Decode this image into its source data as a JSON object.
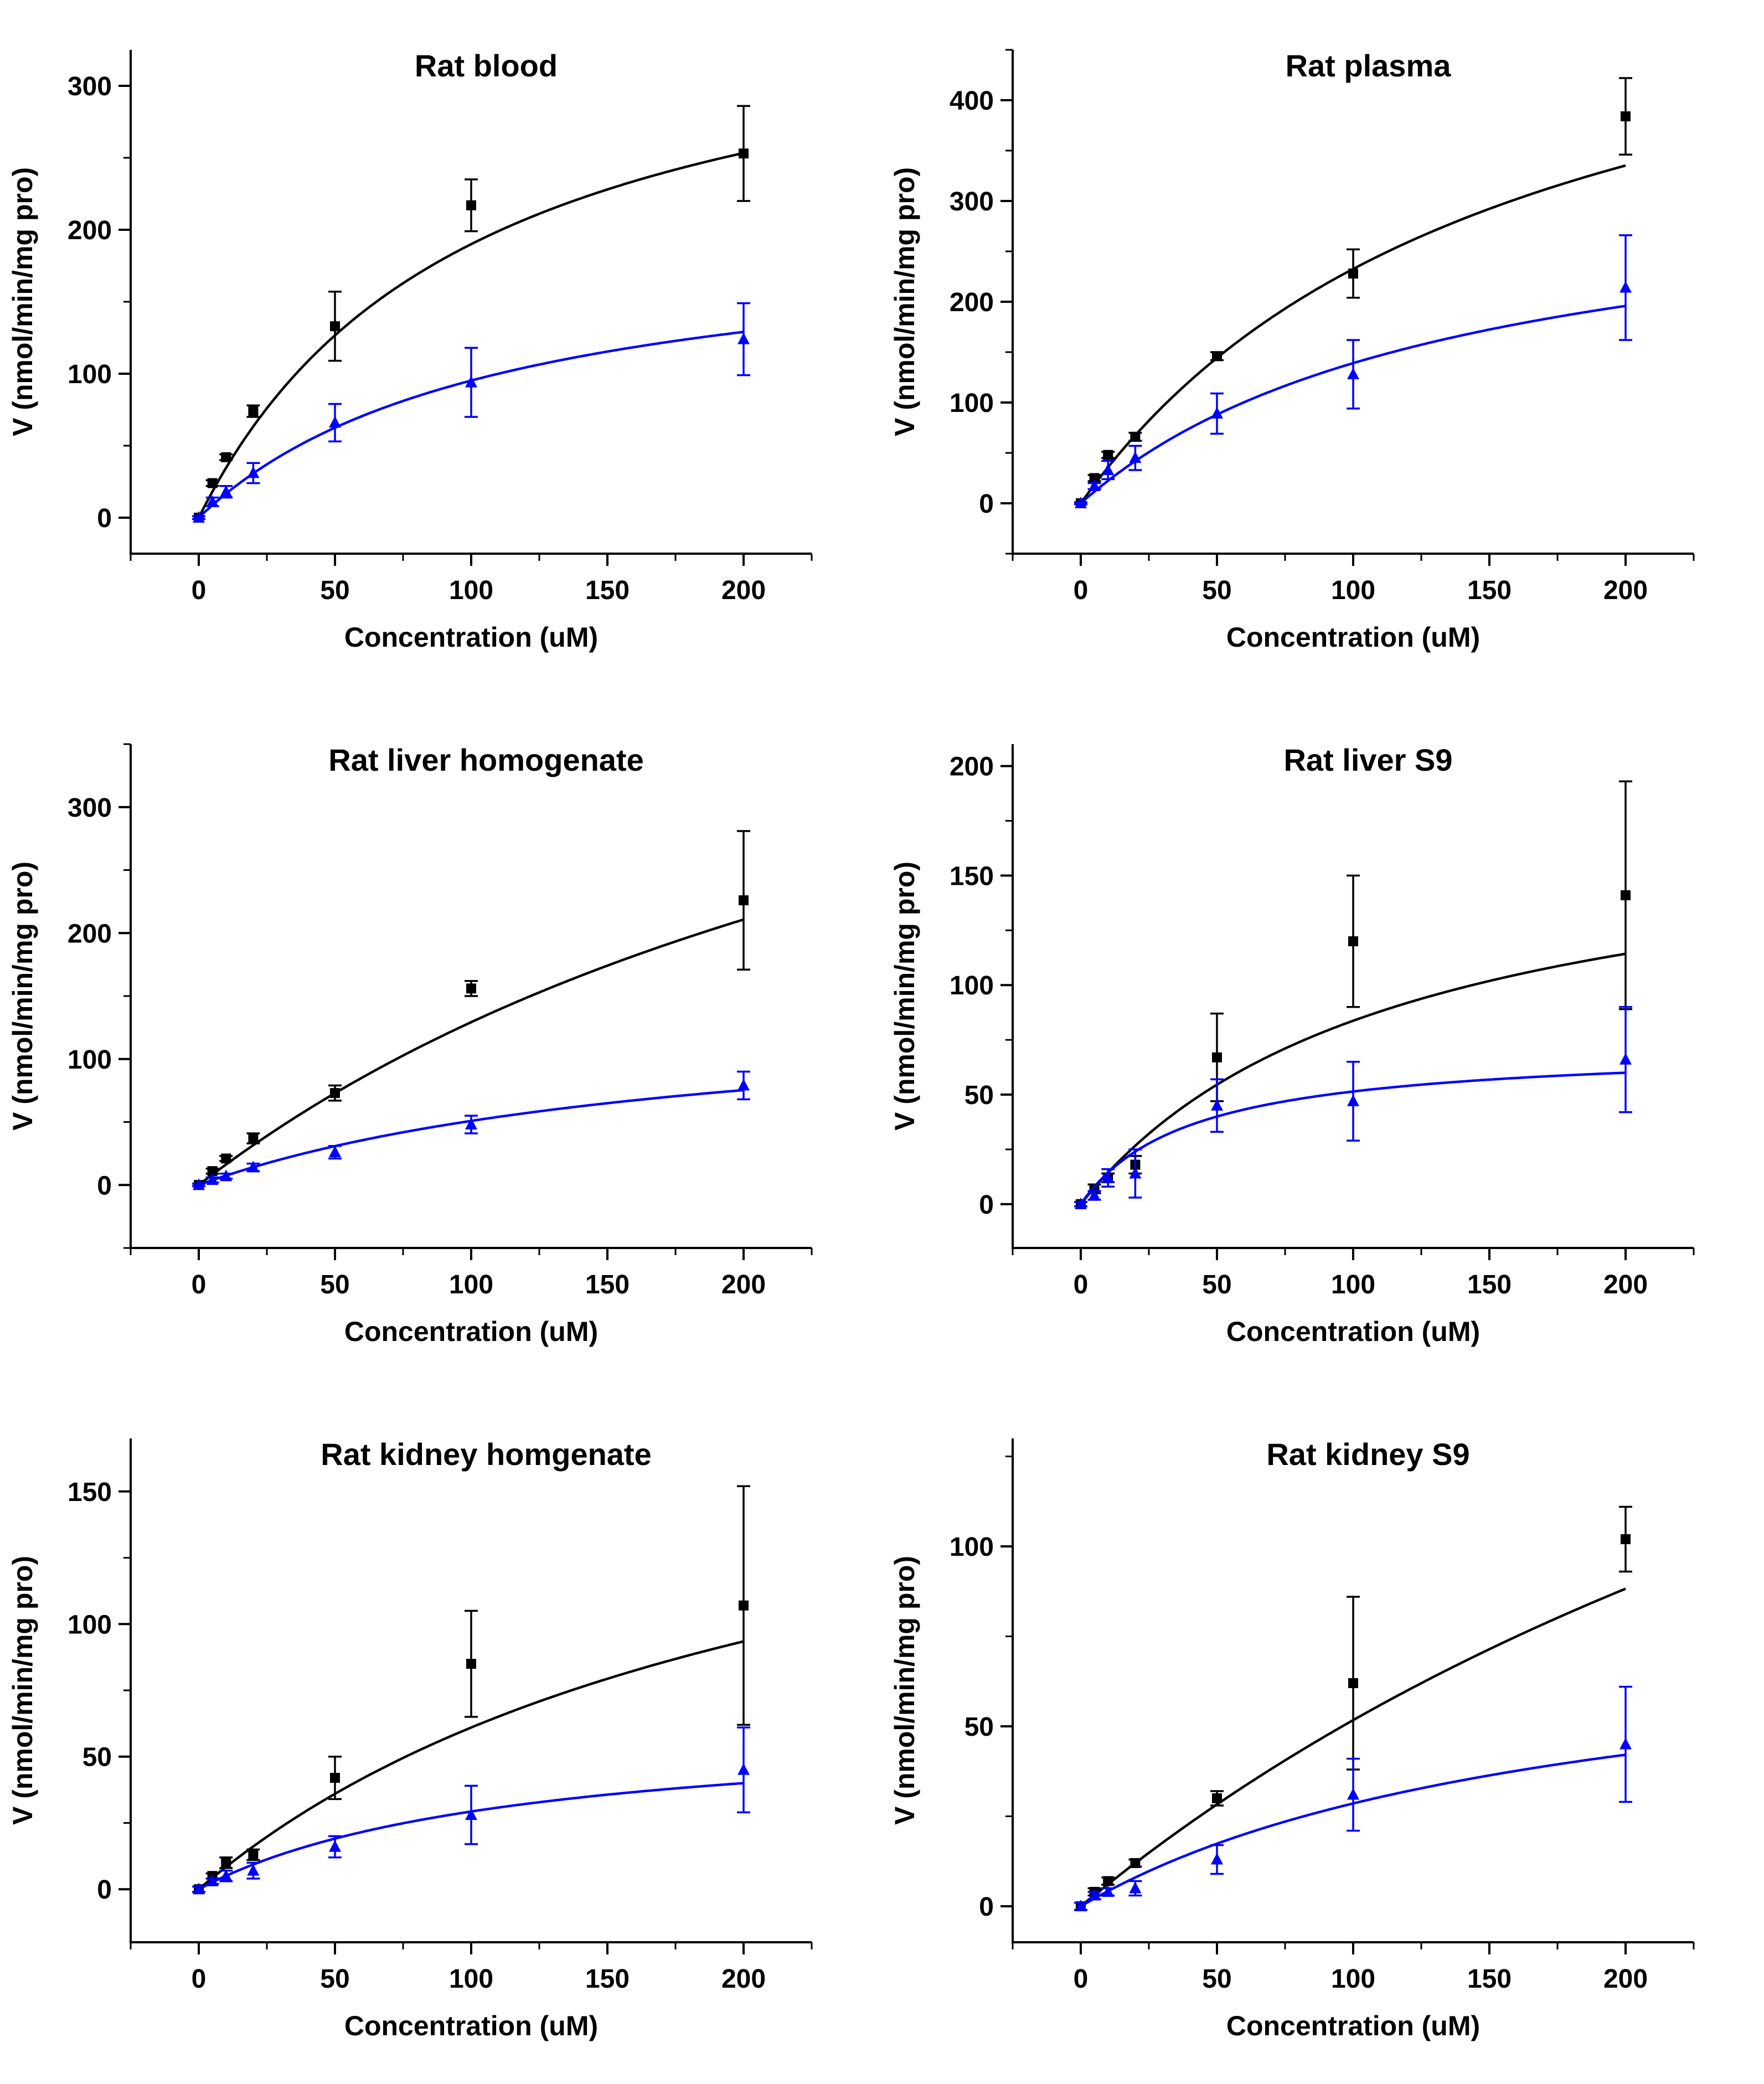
{
  "colors": {
    "series_1": "#000000",
    "series_2": "#0000ff"
  },
  "chart_data": [
    {
      "type": "scatter",
      "title": "Rat blood",
      "xlabel": "Concentration (uM)",
      "ylabel": "V (nmol/min/mg pro)",
      "xlim": [
        -25,
        225
      ],
      "ylim": [
        -25,
        325
      ],
      "xticks": [
        0,
        50,
        100,
        150,
        200
      ],
      "yticks": [
        0,
        100,
        200,
        300
      ],
      "series": [
        {
          "marker": "square",
          "color": "#000000",
          "x": [
            0,
            5,
            10,
            20,
            50,
            100,
            200
          ],
          "y": [
            0,
            24,
            42,
            74,
            133,
            217,
            253
          ],
          "err": [
            1,
            2,
            2,
            4,
            24,
            18,
            33
          ],
          "fit": {
            "Vmax": 380,
            "Km": 100
          }
        },
        {
          "marker": "triangle",
          "color": "#0000ff",
          "x": [
            0,
            5,
            10,
            20,
            50,
            100,
            200
          ],
          "y": [
            0,
            11,
            18,
            31,
            66,
            94,
            124
          ],
          "err": [
            1,
            3,
            4,
            7,
            13,
            24,
            25
          ],
          "fit": {
            "Vmax": 200,
            "Km": 110
          }
        }
      ]
    },
    {
      "type": "scatter",
      "title": "Rat plasma",
      "xlabel": "Concentration (uM)",
      "ylabel": "V (nmol/min/mg pro)",
      "xlim": [
        -25,
        225
      ],
      "ylim": [
        -50,
        450
      ],
      "xticks": [
        0,
        50,
        100,
        150,
        200
      ],
      "yticks": [
        0,
        100,
        200,
        300,
        400
      ],
      "series": [
        {
          "marker": "square",
          "color": "#000000",
          "x": [
            0,
            5,
            10,
            20,
            50,
            100,
            200
          ],
          "y": [
            0,
            25,
            48,
            66,
            146,
            228,
            384
          ],
          "err": [
            1,
            3,
            3,
            4,
            4,
            24,
            38
          ],
          "fit": {
            "Vmax": 600,
            "Km": 158
          }
        },
        {
          "marker": "triangle",
          "color": "#0000ff",
          "x": [
            0,
            5,
            10,
            20,
            50,
            100,
            200
          ],
          "y": [
            0,
            17,
            33,
            45,
            89,
            128,
            214
          ],
          "err": [
            1,
            3,
            9,
            12,
            20,
            34,
            52
          ],
          "fit": {
            "Vmax": 331,
            "Km": 138
          }
        }
      ]
    },
    {
      "type": "scatter",
      "title": "Rat liver homogenate",
      "xlabel": "Concentration (uM)",
      "ylabel": "V (nmol/min/mg pro)",
      "xlim": [
        -25,
        225
      ],
      "ylim": [
        -50,
        350
      ],
      "xticks": [
        0,
        50,
        100,
        150,
        200
      ],
      "yticks": [
        0,
        100,
        200,
        300
      ],
      "series": [
        {
          "marker": "square",
          "color": "#000000",
          "x": [
            0,
            5,
            10,
            20,
            50,
            100,
            200
          ],
          "y": [
            0,
            11,
            21,
            37,
            73,
            156,
            226
          ],
          "err": [
            1,
            2,
            2,
            4,
            6,
            6,
            55
          ],
          "fit": {
            "Vmax": 570,
            "Km": 341
          }
        },
        {
          "marker": "triangle",
          "color": "#0000ff",
          "x": [
            0,
            5,
            10,
            20,
            50,
            100,
            200
          ],
          "y": [
            0,
            4,
            7,
            14,
            26,
            48,
            79
          ],
          "err": [
            1,
            2,
            2,
            3,
            5,
            7,
            11
          ],
          "fit": {
            "Vmax": 145,
            "Km": 185
          }
        }
      ]
    },
    {
      "type": "scatter",
      "title": "Rat liver S9",
      "xlabel": "Concentration (uM)",
      "ylabel": "V (nmol/min/mg pro)",
      "xlim": [
        -25,
        225
      ],
      "ylim": [
        -20,
        210
      ],
      "xticks": [
        0,
        50,
        100,
        150,
        200
      ],
      "yticks": [
        0,
        50,
        100,
        150,
        200
      ],
      "series": [
        {
          "marker": "square",
          "color": "#000000",
          "x": [
            0,
            5,
            10,
            20,
            50,
            100,
            200
          ],
          "y": [
            0,
            7,
            12,
            18,
            67,
            120,
            141
          ],
          "err": [
            1,
            2,
            2,
            4,
            20,
            30,
            52
          ],
          "fit": {
            "Vmax": 180,
            "Km": 115
          }
        },
        {
          "marker": "triangle",
          "color": "#0000ff",
          "x": [
            0,
            5,
            10,
            20,
            50,
            100,
            200
          ],
          "y": [
            0,
            4,
            12,
            14,
            45,
            47,
            66
          ],
          "err": [
            1,
            2,
            4,
            11,
            12,
            18,
            24
          ],
          "fit": {
            "Vmax": 72,
            "Km": 40
          }
        }
      ]
    },
    {
      "type": "scatter",
      "title": "Rat kidney homgenate",
      "xlabel": "Concentration (uM)",
      "ylabel": "V (nmol/min/mg pro)",
      "xlim": [
        -25,
        225
      ],
      "ylim": [
        -20,
        170
      ],
      "xticks": [
        0,
        50,
        100,
        150,
        200
      ],
      "yticks": [
        0,
        50,
        100,
        150
      ],
      "series": [
        {
          "marker": "square",
          "color": "#000000",
          "x": [
            0,
            5,
            10,
            20,
            50,
            100,
            200
          ],
          "y": [
            0,
            5,
            10,
            13,
            42,
            85,
            107
          ],
          "err": [
            1,
            1,
            2,
            2,
            8,
            20,
            45
          ],
          "fit": {
            "Vmax": 200,
            "Km": 228
          }
        },
        {
          "marker": "triangle",
          "color": "#0000ff",
          "x": [
            0,
            5,
            10,
            20,
            50,
            100,
            200
          ],
          "y": [
            0,
            3,
            5,
            7,
            16,
            28,
            45
          ],
          "err": [
            1,
            1,
            2,
            3,
            4,
            11,
            16
          ],
          "fit": {
            "Vmax": 63,
            "Km": 115
          }
        }
      ]
    },
    {
      "type": "scatter",
      "title": "Rat kidney S9",
      "xlabel": "Concentration (uM)",
      "ylabel": "V (nmol/min/mg pro)",
      "xlim": [
        -25,
        225
      ],
      "ylim": [
        -10,
        130
      ],
      "xticks": [
        0,
        50,
        100,
        150,
        200
      ],
      "yticks": [
        0,
        50,
        100
      ],
      "series": [
        {
          "marker": "square",
          "color": "#000000",
          "x": [
            0,
            5,
            10,
            20,
            50,
            100,
            200
          ],
          "y": [
            0,
            4,
            7,
            12,
            30,
            62,
            102
          ],
          "err": [
            1,
            1,
            1,
            1,
            2,
            24,
            9
          ],
          "fit": {
            "Vmax": 300,
            "Km": 480
          }
        },
        {
          "marker": "triangle",
          "color": "#0000ff",
          "x": [
            0,
            5,
            10,
            20,
            50,
            100,
            200
          ],
          "y": [
            0,
            3,
            4,
            5,
            13,
            31,
            45
          ],
          "err": [
            1,
            1,
            1,
            2,
            4,
            10,
            16
          ],
          "fit": {
            "Vmax": 80,
            "Km": 180
          }
        }
      ]
    }
  ]
}
